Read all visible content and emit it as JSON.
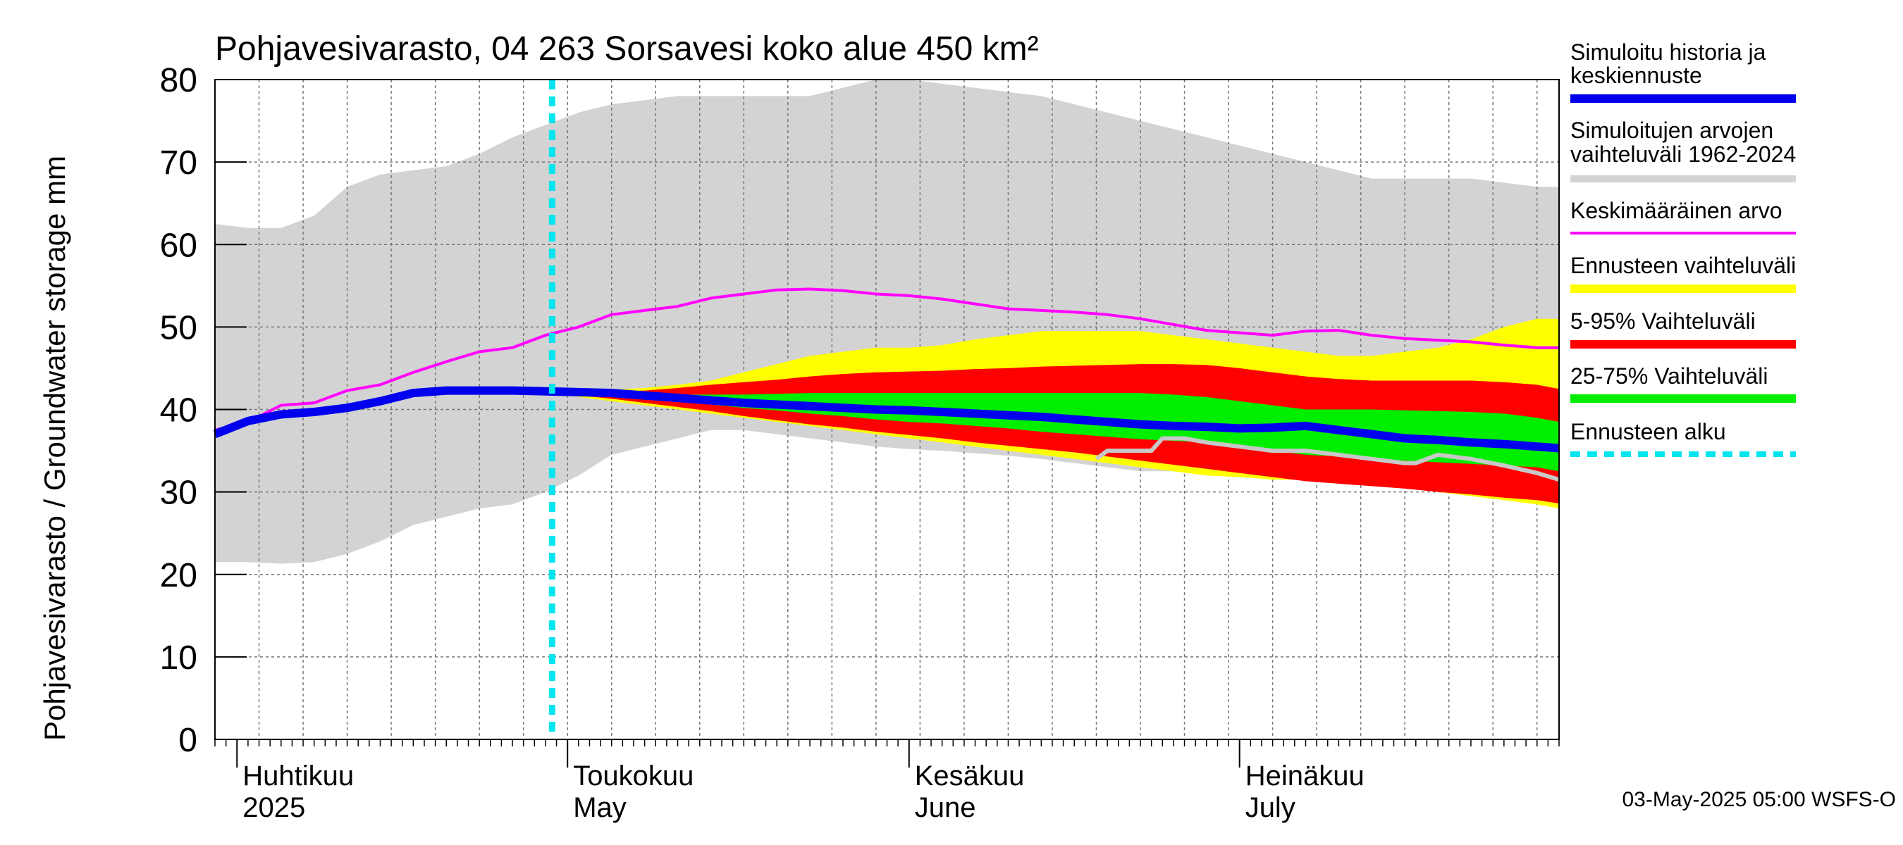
{
  "chart_data": {
    "type": "area",
    "title": "Pohjavesivarasto, 04 263 Sorsavesi koko alue 450 km²",
    "ylabel": "Pohjavesivarasto / Groundwater storage   mm",
    "xlabel": "",
    "ylim": [
      0,
      80
    ],
    "yticks": [
      0,
      10,
      20,
      30,
      40,
      50,
      60,
      70,
      80
    ],
    "x_day_range": [
      0,
      122
    ],
    "x_start_date": "2025-03-30",
    "month_labels": [
      {
        "day": 2,
        "fi": "Huhtikuu",
        "en": "2025"
      },
      {
        "day": 32,
        "fi": "Toukokuu",
        "en": "May"
      },
      {
        "day": 63,
        "fi": "Kesäkuu",
        "en": "June"
      },
      {
        "day": 93,
        "fi": "Heinäkuu",
        "en": "July"
      }
    ],
    "month_starts": [
      2,
      32,
      63,
      93
    ],
    "forecast_start_day": 30.6,
    "footer": "03-May-2025 05:00 WSFS-O",
    "legend": [
      {
        "key": "history",
        "label_1": "Simuloitu historia ja",
        "label_2": "keskiennuste",
        "color": "#0000ee"
      },
      {
        "key": "range",
        "label_1": "Simuloitujen arvojen",
        "label_2": "vaihteluväli 1962-2024",
        "color": "#d3d3d3"
      },
      {
        "key": "mean",
        "label_1": "Keskimääräinen arvo",
        "color": "#ff00ff"
      },
      {
        "key": "forecast_range",
        "label_1": "Ennusteen vaihteluväli",
        "color": "#ffff00"
      },
      {
        "key": "p5_95",
        "label_1": "5-95% Vaihteluväli",
        "color": "#ff0000"
      },
      {
        "key": "p25_75",
        "label_1": "25-75% Vaihteluväli",
        "color": "#00ee00"
      },
      {
        "key": "start",
        "label_1": "Ennusteen alku",
        "color": "#00e5ee"
      }
    ],
    "series": [
      {
        "name": "Simuloitujen arvojen vaihteluväli 1962-2024 (max)",
        "color": "#d3d3d3",
        "x": [
          0,
          3,
          6,
          9,
          12,
          15,
          18,
          21,
          24,
          27,
          30,
          33,
          36,
          39,
          42,
          45,
          48,
          51,
          54,
          57,
          60,
          63,
          66,
          69,
          72,
          75,
          78,
          81,
          84,
          87,
          90,
          93,
          96,
          99,
          102,
          105,
          108,
          111,
          114,
          117,
          120,
          122
        ],
        "values": [
          62.5,
          62,
          62,
          63.5,
          67,
          68.5,
          69,
          69.5,
          71,
          73,
          74.5,
          76,
          77,
          77.5,
          78,
          78,
          78,
          78,
          78,
          79,
          80,
          80,
          79.5,
          79,
          78.5,
          78,
          77,
          76,
          75,
          74,
          73,
          72,
          71,
          70,
          69,
          68,
          68,
          68,
          68,
          67.5,
          67,
          67
        ]
      },
      {
        "name": "Simuloitujen arvojen vaihteluväli 1962-2024 (min)",
        "color": "#d3d3d3",
        "x": [
          0,
          3,
          6,
          9,
          12,
          15,
          18,
          21,
          24,
          27,
          30,
          33,
          36,
          39,
          42,
          45,
          48,
          51,
          54,
          57,
          60,
          63,
          66,
          69,
          72,
          75,
          78,
          81,
          84,
          87,
          90,
          93,
          96,
          99,
          102,
          105,
          108,
          111,
          114,
          117,
          120,
          122
        ],
        "values": [
          21.5,
          21.5,
          21.3,
          21.5,
          22.5,
          24,
          26,
          27,
          28,
          28.5,
          30,
          32,
          34.5,
          35.5,
          36.5,
          37.5,
          37.5,
          37,
          36.5,
          36,
          35.5,
          35.2,
          35,
          34.7,
          34.4,
          34,
          33.5,
          33,
          32.5,
          32.5,
          32.5,
          33,
          33.5,
          33.7,
          34,
          34,
          34,
          34,
          33.8,
          33.5,
          33.2,
          33
        ]
      },
      {
        "name": "Keskimääräinen arvo",
        "color": "#ff00ff",
        "x": [
          0,
          3,
          6,
          9,
          12,
          15,
          18,
          21,
          24,
          27,
          30,
          33,
          36,
          39,
          42,
          45,
          48,
          51,
          54,
          57,
          60,
          63,
          66,
          69,
          72,
          75,
          78,
          81,
          84,
          87,
          90,
          93,
          96,
          99,
          102,
          105,
          108,
          111,
          114,
          117,
          120,
          122
        ],
        "values": [
          37.5,
          38.5,
          40.5,
          40.8,
          42.3,
          43,
          44.5,
          45.8,
          47,
          47.5,
          49,
          50,
          51.5,
          52,
          52.5,
          53.5,
          54,
          54.5,
          54.6,
          54.4,
          54,
          53.8,
          53.4,
          52.8,
          52.2,
          52,
          51.8,
          51.5,
          51,
          50.3,
          49.6,
          49.3,
          49,
          49.5,
          49.6,
          49,
          48.6,
          48.4,
          48.2,
          47.8,
          47.5,
          47.5
        ]
      },
      {
        "name": "Ennusteen vaihteluväli (max)",
        "color": "#ffff00",
        "x": [
          30.6,
          33,
          36,
          39,
          42,
          45,
          48,
          51,
          54,
          57,
          60,
          63,
          66,
          69,
          72,
          75,
          78,
          81,
          84,
          87,
          90,
          93,
          96,
          99,
          102,
          105,
          108,
          111,
          114,
          117,
          120,
          122
        ],
        "values": [
          42,
          42.2,
          42.4,
          42.6,
          43,
          43.5,
          44.5,
          45.5,
          46.5,
          47,
          47.5,
          47.5,
          47.8,
          48.5,
          49,
          49.5,
          49.5,
          49.5,
          49.5,
          49,
          48.5,
          48,
          47.5,
          47,
          46.5,
          46.5,
          47,
          47.5,
          48.5,
          50,
          51,
          51
        ]
      },
      {
        "name": "5-95% Vaihteluväli (max)",
        "color": "#ff0000",
        "x": [
          30.6,
          33,
          36,
          39,
          42,
          45,
          48,
          51,
          54,
          57,
          60,
          63,
          66,
          69,
          72,
          75,
          78,
          81,
          84,
          87,
          90,
          93,
          96,
          99,
          102,
          105,
          108,
          111,
          114,
          117,
          120,
          122
        ],
        "values": [
          42,
          42.1,
          42.2,
          42.3,
          42.6,
          43,
          43.3,
          43.6,
          44,
          44.3,
          44.5,
          44.6,
          44.7,
          44.9,
          45,
          45.2,
          45.3,
          45.4,
          45.5,
          45.5,
          45.4,
          45,
          44.5,
          44,
          43.7,
          43.5,
          43.5,
          43.5,
          43.5,
          43.3,
          43,
          42.5
        ]
      },
      {
        "name": "25-75% Vaihteluväli (max)",
        "color": "#00ee00",
        "x": [
          30.6,
          33,
          36,
          39,
          42,
          45,
          48,
          51,
          54,
          57,
          60,
          63,
          66,
          69,
          72,
          75,
          78,
          81,
          84,
          87,
          90,
          93,
          96,
          99,
          102,
          105,
          108,
          111,
          114,
          117,
          120,
          122
        ],
        "values": [
          42,
          42,
          42,
          42,
          41.8,
          41.8,
          41.8,
          41.9,
          42,
          42,
          42,
          42,
          42,
          42,
          42,
          42,
          42,
          42,
          42,
          41.8,
          41.5,
          41,
          40.5,
          40,
          40,
          40,
          39.9,
          39.8,
          39.7,
          39.5,
          39,
          38.5
        ]
      },
      {
        "name": "25-75% Vaihteluväli (min)",
        "color": "#00ee00",
        "x": [
          30.6,
          33,
          36,
          39,
          42,
          45,
          48,
          51,
          54,
          57,
          60,
          63,
          66,
          69,
          72,
          75,
          78,
          81,
          84,
          87,
          90,
          93,
          96,
          99,
          102,
          105,
          108,
          111,
          114,
          117,
          120,
          122
        ],
        "values": [
          42,
          41.9,
          41.7,
          41.4,
          41,
          40.6,
          40.2,
          39.9,
          39.5,
          39.2,
          38.8,
          38.5,
          38.3,
          38,
          37.7,
          37.3,
          37,
          36.7,
          36.4,
          36.2,
          36,
          35.5,
          35,
          34.5,
          34.3,
          34,
          33.8,
          33.6,
          33.4,
          33.2,
          33,
          32.5
        ]
      },
      {
        "name": "5-95% Vaihteluväli (min)",
        "color": "#ff0000",
        "x": [
          30.6,
          33,
          36,
          39,
          42,
          45,
          48,
          51,
          54,
          57,
          60,
          63,
          66,
          69,
          72,
          75,
          78,
          81,
          84,
          87,
          90,
          93,
          96,
          99,
          102,
          105,
          108,
          111,
          114,
          117,
          120,
          122
        ],
        "values": [
          42,
          41.7,
          41.3,
          40.8,
          40.3,
          39.8,
          39.2,
          38.7,
          38.2,
          37.8,
          37.3,
          36.9,
          36.5,
          36,
          35.6,
          35.2,
          34.8,
          34.3,
          33.8,
          33.3,
          32.8,
          32.3,
          31.8,
          31.3,
          31,
          30.7,
          30.4,
          30,
          29.7,
          29.3,
          29,
          28.6
        ]
      },
      {
        "name": "Ennusteen vaihteluväli (min)",
        "color": "#ffff00",
        "x": [
          30.6,
          33,
          36,
          39,
          42,
          45,
          48,
          51,
          54,
          57,
          60,
          63,
          66,
          69,
          72,
          75,
          78,
          81,
          84,
          87,
          90,
          93,
          96,
          99,
          102,
          105,
          108,
          111,
          114,
          117,
          120,
          122
        ],
        "values": [
          42,
          41.5,
          41,
          40.5,
          40,
          39.5,
          39,
          38.5,
          38,
          37.5,
          37,
          36.5,
          36,
          35.5,
          35,
          34.5,
          34,
          33.5,
          33,
          32.5,
          32,
          31.8,
          31.5,
          31.5,
          31.2,
          31,
          30.5,
          30,
          29.5,
          29,
          28.5,
          28
        ]
      },
      {
        "name": "Simuloitu historia ja keskiennuste",
        "color": "#0000ee",
        "x": [
          0,
          3,
          6,
          9,
          12,
          15,
          18,
          21,
          24,
          27,
          30,
          33,
          36,
          39,
          42,
          45,
          48,
          51,
          54,
          57,
          60,
          63,
          66,
          69,
          72,
          75,
          78,
          81,
          84,
          87,
          90,
          93,
          96,
          99,
          102,
          105,
          108,
          111,
          114,
          117,
          120,
          122
        ],
        "values": [
          37,
          38.6,
          39.4,
          39.7,
          40.2,
          41,
          42,
          42.3,
          42.3,
          42.3,
          42.2,
          42.1,
          42,
          41.7,
          41.4,
          41.1,
          40.8,
          40.6,
          40.4,
          40.2,
          40,
          39.9,
          39.7,
          39.5,
          39.3,
          39.1,
          38.8,
          38.5,
          38.2,
          38,
          37.9,
          37.7,
          37.8,
          38,
          37.5,
          37,
          36.5,
          36.3,
          36,
          35.8,
          35.5,
          35.3
        ]
      },
      {
        "name": "grey trace",
        "color": "#c8c8c8",
        "x": [
          80,
          81,
          84,
          85,
          86,
          88,
          90,
          93,
          96,
          99,
          102,
          105,
          108,
          109,
          110,
          111,
          114,
          117,
          120,
          122
        ],
        "values": [
          34,
          35,
          35,
          35,
          36.5,
          36.5,
          36,
          35.5,
          35,
          35,
          34.5,
          34,
          33.5,
          33.5,
          34,
          34.5,
          34,
          33.2,
          32.3,
          31.5
        ]
      }
    ]
  }
}
